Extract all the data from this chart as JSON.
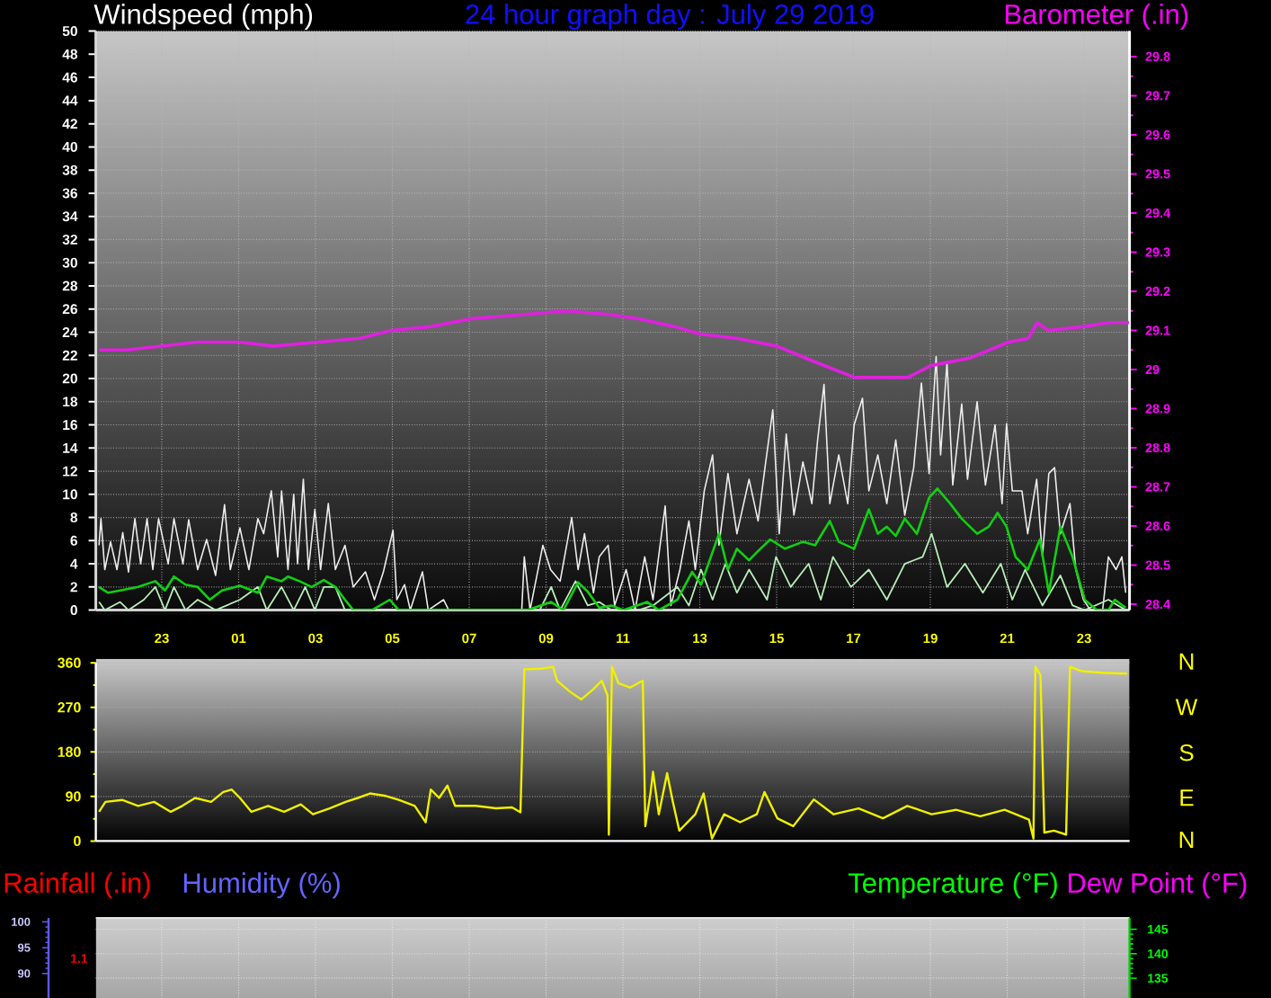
{
  "chart_data": [
    {
      "type": "line",
      "title": "24 hour graph day : July 29 2019",
      "ylabel": "Windspeed (mph)",
      "y2label": "Barometer (.in)",
      "xlim": [
        "2019-07-28T21:17",
        "2019-07-30T00:11"
      ],
      "xticks": [
        {
          "value": "2019-07-28T23:00",
          "label": "23"
        },
        {
          "value": "2019-07-29T01:00",
          "label": "01"
        },
        {
          "value": "2019-07-29T03:00",
          "label": "03"
        },
        {
          "value": "2019-07-29T05:00",
          "label": "05"
        },
        {
          "value": "2019-07-29T07:00",
          "label": "07"
        },
        {
          "value": "2019-07-29T09:00",
          "label": "09"
        },
        {
          "value": "2019-07-29T11:00",
          "label": "11"
        },
        {
          "value": "2019-07-29T13:00",
          "label": "13"
        },
        {
          "value": "2019-07-29T15:00",
          "label": "15"
        },
        {
          "value": "2019-07-29T17:00",
          "label": "17"
        },
        {
          "value": "2019-07-29T19:00",
          "label": "19"
        },
        {
          "value": "2019-07-29T21:00",
          "label": "21"
        },
        {
          "value": "2019-07-29T23:00",
          "label": "23"
        }
      ],
      "ylim": [
        0,
        50
      ],
      "yticks": [
        0,
        2,
        4,
        6,
        8,
        10,
        12,
        14,
        16,
        18,
        20,
        22,
        24,
        26,
        28,
        30,
        32,
        34,
        36,
        38,
        40,
        42,
        44,
        46,
        48,
        50
      ],
      "y2lim": [
        28.385,
        29.865
      ],
      "y2ticks": [
        28.4,
        28.5,
        28.6,
        28.7,
        28.8,
        28.9,
        29,
        29.1,
        29.2,
        29.3,
        29.4,
        29.5,
        29.6,
        29.7,
        29.8
      ],
      "grid": true,
      "series": [
        {
          "color": "#ececec",
          "x": [
            "2019-07-28T21:22",
            "2019-07-28T21:25",
            "2019-07-28T21:31",
            "2019-07-28T21:40",
            "2019-07-28T21:50",
            "2019-07-28T21:59",
            "2019-07-28T22:08",
            "2019-07-28T22:18",
            "2019-07-28T22:27",
            "2019-07-28T22:37",
            "2019-07-28T22:46",
            "2019-07-28T22:55",
            "2019-07-28T23:10",
            "2019-07-28T23:19",
            "2019-07-28T23:33",
            "2019-07-28T23:42",
            "2019-07-28T23:56",
            "2019-07-29T00:10",
            "2019-07-29T00:24",
            "2019-07-29T00:38",
            "2019-07-29T00:47",
            "2019-07-29T01:02",
            "2019-07-29T01:16",
            "2019-07-29T01:30",
            "2019-07-29T01:39",
            "2019-07-29T01:51",
            "2019-07-29T02:01",
            "2019-07-29T02:07",
            "2019-07-29T02:17",
            "2019-07-29T02:26",
            "2019-07-29T02:32",
            "2019-07-29T02:41",
            "2019-07-29T02:49",
            "2019-07-29T02:59",
            "2019-07-29T03:08",
            "2019-07-29T03:20",
            "2019-07-29T03:31",
            "2019-07-29T03:46",
            "2019-07-29T03:59",
            "2019-07-29T04:18",
            "2019-07-29T04:32",
            "2019-07-29T04:46",
            "2019-07-29T05:01",
            "2019-07-29T05:07",
            "2019-07-29T05:19",
            "2019-07-29T05:28",
            "2019-07-29T05:47",
            "2019-07-29T05:56",
            "2019-07-29T06:20",
            "2019-07-29T06:28",
            "2019-07-29T08:22",
            "2019-07-29T08:26",
            "2019-07-29T08:35",
            "2019-07-29T08:55",
            "2019-07-29T09:07",
            "2019-07-29T09:22",
            "2019-07-29T09:40",
            "2019-07-29T09:50",
            "2019-07-29T10:00",
            "2019-07-29T10:14",
            "2019-07-29T10:23",
            "2019-07-29T10:37",
            "2019-07-29T10:47",
            "2019-07-29T11:05",
            "2019-07-29T11:19",
            "2019-07-29T11:34",
            "2019-07-29T11:47",
            "2019-07-29T12:06",
            "2019-07-29T12:15",
            "2019-07-29T12:29",
            "2019-07-29T12:43",
            "2019-07-29T12:53",
            "2019-07-29T13:07",
            "2019-07-29T13:20",
            "2019-07-29T13:30",
            "2019-07-29T13:44",
            "2019-07-29T13:58",
            "2019-07-29T14:17",
            "2019-07-29T14:31",
            "2019-07-29T14:43",
            "2019-07-29T14:54",
            "2019-07-29T15:04",
            "2019-07-29T15:15",
            "2019-07-29T15:27",
            "2019-07-29T15:41",
            "2019-07-29T15:55",
            "2019-07-29T16:04",
            "2019-07-29T16:14",
            "2019-07-29T16:23",
            "2019-07-29T16:37",
            "2019-07-29T16:51",
            "2019-07-29T17:01",
            "2019-07-29T17:14",
            "2019-07-29T17:24",
            "2019-07-29T17:38",
            "2019-07-29T17:52",
            "2019-07-29T18:06",
            "2019-07-29T18:20",
            "2019-07-29T18:34",
            "2019-07-29T18:46",
            "2019-07-29T18:58",
            "2019-07-29T19:09",
            "2019-07-29T19:16",
            "2019-07-29T19:26",
            "2019-07-29T19:35",
            "2019-07-29T19:49",
            "2019-07-29T19:58",
            "2019-07-29T20:13",
            "2019-07-29T20:26",
            "2019-07-29T20:41",
            "2019-07-29T20:52",
            "2019-07-29T20:59",
            "2019-07-29T21:08",
            "2019-07-29T21:23",
            "2019-07-29T21:32",
            "2019-07-29T21:46",
            "2019-07-29T21:55",
            "2019-07-29T22:05",
            "2019-07-29T22:14",
            "2019-07-29T22:23",
            "2019-07-29T22:38",
            "2019-07-29T22:47",
            "2019-07-29T22:59",
            "2019-07-29T23:10",
            "2019-07-29T23:29",
            "2019-07-29T23:38",
            "2019-07-29T23:50",
            "2019-07-29T23:59",
            "2019-07-30T00:05"
          ],
          "values": [
            5.6,
            7.9,
            3.5,
            5.9,
            3.5,
            6.7,
            3.3,
            7.9,
            4.0,
            7.9,
            3.5,
            7.9,
            4.0,
            7.9,
            4.0,
            7.8,
            3.5,
            6.1,
            3.0,
            9.1,
            3.5,
            7.1,
            3.5,
            7.9,
            6.6,
            10.3,
            4.6,
            10.3,
            3.5,
            10.0,
            4.0,
            11.3,
            3.5,
            8.7,
            3.5,
            9.2,
            3.5,
            5.6,
            2.0,
            3.3,
            0.9,
            3.3,
            6.9,
            0.9,
            2.2,
            0,
            3.3,
            0,
            0.9,
            0,
            0,
            4.6,
            0,
            5.6,
            3.5,
            2.5,
            8.0,
            3.5,
            6.6,
            1.5,
            4.6,
            5.6,
            0.4,
            3.5,
            0,
            4.6,
            0.9,
            9.0,
            0.4,
            3.5,
            7.7,
            3.5,
            10.3,
            13.4,
            5.6,
            11.8,
            6.6,
            11.3,
            7.7,
            12.8,
            17.3,
            6.6,
            15.2,
            8.2,
            12.8,
            9.2,
            14.7,
            19.5,
            9.2,
            13.4,
            9.2,
            16.0,
            18.3,
            10.3,
            13.4,
            9.2,
            14.7,
            8.2,
            12.3,
            19.6,
            11.8,
            21.9,
            13.4,
            21.4,
            10.8,
            17.8,
            11.3,
            18.0,
            10.8,
            16.0,
            9.2,
            16.1,
            10.3,
            10.3,
            6.6,
            11.3,
            4.6,
            11.8,
            12.3,
            6.6,
            9.2,
            3.5,
            0.9,
            0,
            0,
            4.6,
            3.5,
            4.6,
            1.5
          ]
        },
        {
          "color": "#b8ecb8",
          "x": [
            "2019-07-28T21:22",
            "2019-07-28T21:31",
            "2019-07-28T21:55",
            "2019-07-28T22:08",
            "2019-07-28T22:32",
            "2019-07-28T22:50",
            "2019-07-28T23:05",
            "2019-07-28T23:19",
            "2019-07-28T23:37",
            "2019-07-28T23:56",
            "2019-07-29T00:24",
            "2019-07-29T01:02",
            "2019-07-29T01:30",
            "2019-07-29T01:44",
            "2019-07-29T02:07",
            "2019-07-29T02:26",
            "2019-07-29T02:44",
            "2019-07-29T02:59",
            "2019-07-29T03:13",
            "2019-07-29T03:31",
            "2019-07-29T03:46",
            "2019-07-29T04:09",
            "2019-07-29T08:50",
            "2019-07-29T09:08",
            "2019-07-29T09:22",
            "2019-07-29T09:46",
            "2019-07-29T10:05",
            "2019-07-29T10:23",
            "2019-07-29T10:42",
            "2019-07-29T11:24",
            "2019-07-29T11:47",
            "2019-07-29T12:25",
            "2019-07-29T12:43",
            "2019-07-29T13:02",
            "2019-07-29T13:20",
            "2019-07-29T13:40",
            "2019-07-29T13:58",
            "2019-07-29T14:17",
            "2019-07-29T14:45",
            "2019-07-29T14:59",
            "2019-07-29T15:22",
            "2019-07-29T15:50",
            "2019-07-29T16:09",
            "2019-07-29T16:28",
            "2019-07-29T16:56",
            "2019-07-29T17:24",
            "2019-07-29T17:52",
            "2019-07-29T18:20",
            "2019-07-29T18:48",
            "2019-07-29T19:02",
            "2019-07-29T19:26",
            "2019-07-29T19:54",
            "2019-07-29T20:22",
            "2019-07-29T20:50",
            "2019-07-29T21:08",
            "2019-07-29T21:28",
            "2019-07-29T21:55",
            "2019-07-29T22:23",
            "2019-07-29T22:42",
            "2019-07-29T23:01",
            "2019-07-29T23:38",
            "2019-07-30T00:05"
          ],
          "values": [
            0.7,
            0,
            0.7,
            0,
            0.9,
            2.0,
            0,
            2.0,
            0,
            0.9,
            0,
            0.9,
            2.0,
            0,
            2.0,
            0,
            2.0,
            0,
            2.0,
            2.0,
            0,
            0,
            0,
            2.0,
            0,
            2.5,
            0.4,
            0.7,
            0,
            0,
            0.4,
            2.0,
            0.4,
            3.5,
            0.9,
            4.0,
            1.5,
            3.5,
            0.9,
            4.6,
            2.0,
            4.0,
            0.9,
            4.6,
            2.0,
            3.5,
            0.9,
            4.0,
            4.6,
            6.6,
            2.0,
            4.0,
            1.5,
            4.0,
            0.9,
            3.5,
            0.4,
            3.0,
            0.4,
            0,
            0.9,
            0
          ]
        },
        {
          "color": "#10d010",
          "x": [
            "2019-07-28T21:22",
            "2019-07-28T21:36",
            "2019-07-28T21:55",
            "2019-07-28T22:23",
            "2019-07-28T22:50",
            "2019-07-28T23:05",
            "2019-07-28T23:19",
            "2019-07-28T23:37",
            "2019-07-28T23:56",
            "2019-07-29T00:15",
            "2019-07-29T00:34",
            "2019-07-29T01:02",
            "2019-07-29T01:30",
            "2019-07-29T01:44",
            "2019-07-29T02:07",
            "2019-07-29T02:17",
            "2019-07-29T02:35",
            "2019-07-29T02:54",
            "2019-07-29T03:13",
            "2019-07-29T03:31",
            "2019-07-29T03:46",
            "2019-07-29T03:59",
            "2019-07-29T04:28",
            "2019-07-29T04:56",
            "2019-07-29T05:10",
            "2019-07-29T08:31",
            "2019-07-29T09:08",
            "2019-07-29T09:27",
            "2019-07-29T09:50",
            "2019-07-29T10:05",
            "2019-07-29T10:23",
            "2019-07-29T10:42",
            "2019-07-29T11:01",
            "2019-07-29T11:38",
            "2019-07-29T11:56",
            "2019-07-29T12:25",
            "2019-07-29T12:48",
            "2019-07-29T13:02",
            "2019-07-29T13:30",
            "2019-07-29T13:44",
            "2019-07-29T13:58",
            "2019-07-29T14:17",
            "2019-07-29T14:31",
            "2019-07-29T14:50",
            "2019-07-29T15:13",
            "2019-07-29T15:41",
            "2019-07-29T16:00",
            "2019-07-29T16:23",
            "2019-07-29T16:37",
            "2019-07-29T17:01",
            "2019-07-29T17:24",
            "2019-07-29T17:38",
            "2019-07-29T17:52",
            "2019-07-29T18:06",
            "2019-07-29T18:20",
            "2019-07-29T18:39",
            "2019-07-29T18:58",
            "2019-07-29T19:11",
            "2019-07-29T19:31",
            "2019-07-29T19:49",
            "2019-07-29T20:13",
            "2019-07-29T20:31",
            "2019-07-29T20:45",
            "2019-07-29T20:59",
            "2019-07-29T21:13",
            "2019-07-29T21:32",
            "2019-07-29T21:51",
            "2019-07-29T22:05",
            "2019-07-29T22:23",
            "2019-07-29T22:42",
            "2019-07-29T23:01",
            "2019-07-29T23:20",
            "2019-07-29T23:38",
            "2019-07-29T23:48",
            "2019-07-30T00:05"
          ],
          "values": [
            2.0,
            1.5,
            1.7,
            2.0,
            2.5,
            1.7,
            2.9,
            2.2,
            2.0,
            0.9,
            1.7,
            2.1,
            1.5,
            2.9,
            2.5,
            2.9,
            2.5,
            2.0,
            2.6,
            2.0,
            0.9,
            0,
            0,
            0.9,
            0,
            0,
            0.7,
            0,
            2.4,
            1.6,
            0.2,
            0.4,
            0,
            0.7,
            0,
            0.9,
            3.3,
            2.2,
            6.6,
            3.5,
            5.3,
            4.3,
            5.1,
            6.1,
            5.3,
            5.9,
            5.6,
            7.7,
            5.9,
            5.3,
            8.7,
            6.6,
            7.2,
            6.4,
            7.9,
            6.6,
            9.7,
            10.5,
            9.2,
            7.9,
            6.6,
            7.2,
            8.4,
            7.2,
            4.6,
            3.5,
            6.1,
            1.5,
            7.2,
            4.6,
            0.9,
            0,
            0,
            0.9,
            0.2
          ]
        },
        {
          "color": "#e020e0",
          "axis": "y2",
          "x": [
            "2019-07-28T21:22",
            "2019-07-28T22:04",
            "2019-07-28T23:00",
            "2019-07-28T23:56",
            "2019-07-29T01:01",
            "2019-07-29T01:54",
            "2019-07-29T03:04",
            "2019-07-29T04:09",
            "2019-07-29T04:59",
            "2019-07-29T06:01",
            "2019-07-29T07:03",
            "2019-07-29T08:22",
            "2019-07-29T09:32",
            "2019-07-29T10:42",
            "2019-07-29T11:24",
            "2019-07-29T12:20",
            "2019-07-29T13:02",
            "2019-07-29T13:58",
            "2019-07-29T15:00",
            "2019-07-29T15:59",
            "2019-07-29T17:01",
            "2019-07-29T17:49",
            "2019-07-29T18:25",
            "2019-07-29T19:01",
            "2019-07-29T20:03",
            "2019-07-29T21:02",
            "2019-07-29T21:33",
            "2019-07-29T21:47",
            "2019-07-29T22:04",
            "2019-07-29T23:00",
            "2019-07-29T23:39",
            "2019-07-30T00:10"
          ],
          "values": [
            29.05,
            29.05,
            29.06,
            29.07,
            29.07,
            29.06,
            29.07,
            29.08,
            29.1,
            29.11,
            29.13,
            29.14,
            29.15,
            29.14,
            29.13,
            29.11,
            29.09,
            29.08,
            29.06,
            29.02,
            28.98,
            28.98,
            28.98,
            29.01,
            29.03,
            29.07,
            29.08,
            29.12,
            29.1,
            29.11,
            29.12,
            29.12
          ]
        }
      ]
    },
    {
      "type": "line",
      "annotations": [
        "N",
        "W",
        "S",
        "E",
        "N"
      ],
      "xlim": [
        "2019-07-28T21:17",
        "2019-07-30T00:11"
      ],
      "ylim": [
        0,
        360
      ],
      "yticks": [
        0,
        90,
        180,
        270,
        360
      ],
      "grid": "y",
      "tick_labels": "y",
      "series": [
        {
          "color": "#f0f000",
          "x": [
            "2019-07-28T21:22",
            "2019-07-28T21:32",
            "2019-07-28T21:58",
            "2019-07-28T22:23",
            "2019-07-28T22:48",
            "2019-07-28T23:14",
            "2019-07-28T23:32",
            "2019-07-28T23:52",
            "2019-07-29T00:17",
            "2019-07-29T00:36",
            "2019-07-29T00:49",
            "2019-07-29T01:02",
            "2019-07-29T01:20",
            "2019-07-29T01:46",
            "2019-07-29T02:11",
            "2019-07-29T02:37",
            "2019-07-29T02:56",
            "2019-07-29T03:22",
            "2019-07-29T03:47",
            "2019-07-29T04:06",
            "2019-07-29T04:25",
            "2019-07-29T04:50",
            "2019-07-29T05:10",
            "2019-07-29T05:35",
            "2019-07-29T05:52",
            "2019-07-29T06:00",
            "2019-07-29T06:13",
            "2019-07-29T06:26",
            "2019-07-29T06:38",
            "2019-07-29T07:10",
            "2019-07-29T07:42",
            "2019-07-29T08:07",
            "2019-07-29T08:20",
            "2019-07-29T08:26",
            "2019-07-29T08:52",
            "2019-07-29T09:11",
            "2019-07-29T09:17",
            "2019-07-29T09:37",
            "2019-07-29T09:55",
            "2019-07-29T10:14",
            "2019-07-29T10:27",
            "2019-07-29T10:36",
            "2019-07-29T10:38",
            "2019-07-29T10:43",
            "2019-07-29T10:53",
            "2019-07-29T11:11",
            "2019-07-29T11:31",
            "2019-07-29T11:35",
            "2019-07-29T11:43",
            "2019-07-29T11:47",
            "2019-07-29T11:56",
            "2019-07-29T12:09",
            "2019-07-29T12:18",
            "2019-07-29T12:28",
            "2019-07-29T12:53",
            "2019-07-29T13:06",
            "2019-07-29T13:19",
            "2019-07-29T13:38",
            "2019-07-29T14:03",
            "2019-07-29T14:29",
            "2019-07-29T14:41",
            "2019-07-29T15:01",
            "2019-07-29T15:26",
            "2019-07-29T15:58",
            "2019-07-29T16:29",
            "2019-07-29T17:08",
            "2019-07-29T17:46",
            "2019-07-29T18:24",
            "2019-07-29T19:02",
            "2019-07-29T19:40",
            "2019-07-29T20:18",
            "2019-07-29T20:56",
            "2019-07-29T21:34",
            "2019-07-29T21:41",
            "2019-07-29T21:44",
            "2019-07-29T21:52",
            "2019-07-29T21:58",
            "2019-07-29T22:13",
            "2019-07-29T22:32",
            "2019-07-29T22:38",
            "2019-07-29T22:57",
            "2019-07-29T23:29",
            "2019-07-30T00:07"
          ],
          "values": [
            59,
            79,
            83,
            71,
            79,
            59,
            71,
            87,
            79,
            99,
            104,
            87,
            59,
            71,
            59,
            74,
            54,
            66,
            79,
            87,
            96,
            91,
            83,
            71,
            38,
            104,
            87,
            112,
            71,
            71,
            66,
            68,
            58,
            347,
            348,
            352,
            324,
            302,
            286,
            307,
            324,
            294,
            13,
            352,
            319,
            310,
            324,
            30,
            96,
            140,
            54,
            137,
            79,
            21,
            54,
            96,
            5,
            54,
            38,
            54,
            99,
            46,
            30,
            84,
            54,
            66,
            46,
            71,
            54,
            63,
            50,
            63,
            43,
            5,
            352,
            335,
            17,
            21,
            13,
            352,
            343,
            340,
            338
          ]
        }
      ]
    },
    {
      "type": "line",
      "ylabel": "Temperature (°F)",
      "y2label": "Humidity (%)",
      "annotations": [
        "Rainfall (.in)",
        "1.1",
        "Dew Point (°F)"
      ],
      "xlim": [
        "2019-07-28T21:17",
        "2019-07-30T00:11"
      ],
      "xticks": [
        "2019-07-28T23:00",
        "2019-07-29T01:00",
        "2019-07-29T03:00",
        "2019-07-29T05:00",
        "2019-07-29T07:00",
        "2019-07-29T09:00",
        "2019-07-29T11:00",
        "2019-07-29T13:00",
        "2019-07-29T15:00",
        "2019-07-29T17:00",
        "2019-07-29T19:00",
        "2019-07-29T21:00",
        "2019-07-29T23:00"
      ],
      "ylim": [
        130.95,
        147.3
      ],
      "yticks": [
        135,
        140,
        145
      ],
      "y2lim": [
        85.25,
        100.75
      ],
      "y2ticks": [
        90,
        95,
        100
      ],
      "grid": true,
      "tick_labels": "y"
    }
  ]
}
